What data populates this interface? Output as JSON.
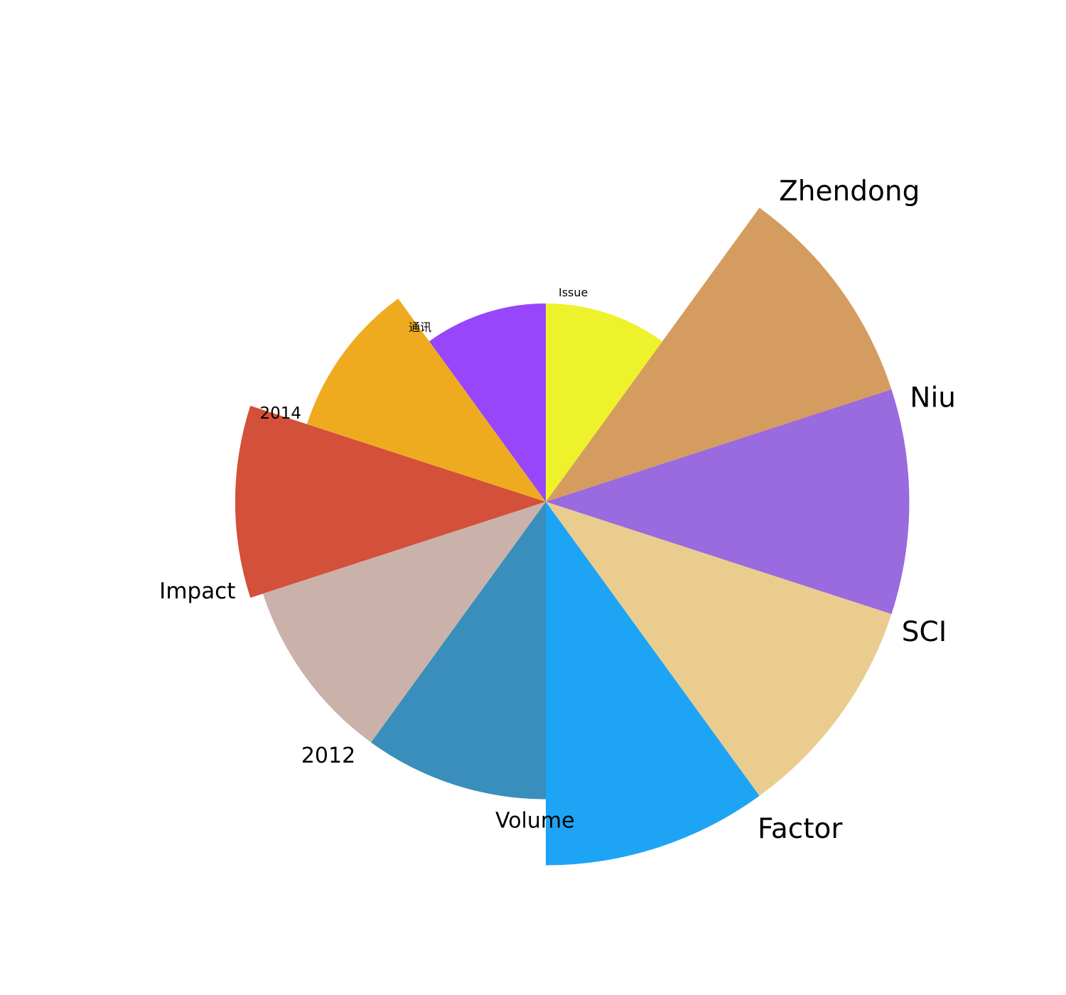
{
  "chart_data": {
    "type": "pie",
    "subtype": "rose (variable-radius sectors)",
    "title": "",
    "categories": [
      "Issue",
      "Zhendong",
      "Niu",
      "SCI",
      "Factor",
      "Volume",
      "2012",
      "Impact",
      "2014",
      "通讯"
    ],
    "values": [
      30,
      55,
      55,
      55,
      55,
      45,
      45,
      47,
      38,
      30
    ],
    "colors": [
      "#EEF22A",
      "#D59C5F",
      "#9A6ADF",
      "#EACD8E",
      "#1EA4F5",
      "#398EBC",
      "#CAB2AB",
      "#D3503A",
      "#EFAB20",
      "#9846FB"
    ],
    "legend": "none",
    "grid": false
  }
}
